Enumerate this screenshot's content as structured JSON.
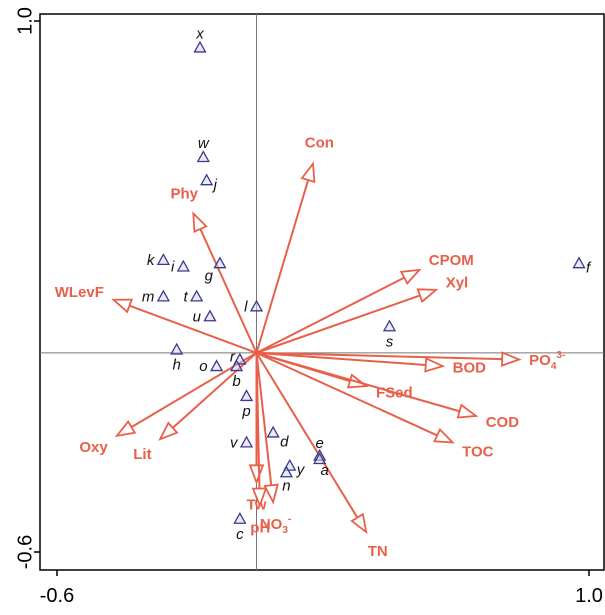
{
  "chart_data": {
    "type": "scatter",
    "title": "",
    "xlabel": "",
    "ylabel": "",
    "xlim": [
      -0.6,
      1.0
    ],
    "ylim": [
      -0.6,
      1.0
    ],
    "x_tick_labels": [
      "-0.6",
      "1.0"
    ],
    "y_tick_labels": [
      "-0.6",
      "1.0"
    ],
    "grid": false,
    "colors": {
      "vector": "#e8604a",
      "site": "#3a3a8c"
    },
    "sites": [
      {
        "label": "x",
        "x": -0.17,
        "y": 0.92
      },
      {
        "label": "w",
        "x": -0.16,
        "y": 0.59
      },
      {
        "label": "j",
        "x": -0.15,
        "y": 0.52
      },
      {
        "label": "g",
        "x": -0.11,
        "y": 0.27
      },
      {
        "label": "k",
        "x": -0.28,
        "y": 0.28
      },
      {
        "label": "i",
        "x": -0.22,
        "y": 0.26
      },
      {
        "label": "m",
        "x": -0.28,
        "y": 0.17
      },
      {
        "label": "t",
        "x": -0.18,
        "y": 0.17
      },
      {
        "label": "u",
        "x": -0.14,
        "y": 0.11
      },
      {
        "label": "l",
        "x": 0.0,
        "y": 0.14
      },
      {
        "label": "s",
        "x": 0.4,
        "y": 0.08
      },
      {
        "label": "f",
        "x": 0.97,
        "y": 0.27
      },
      {
        "label": "h",
        "x": -0.24,
        "y": 0.01
      },
      {
        "label": "o",
        "x": -0.12,
        "y": -0.04
      },
      {
        "label": "r",
        "x": -0.05,
        "y": -0.02
      },
      {
        "label": "b",
        "x": -0.06,
        "y": -0.04
      },
      {
        "label": "p",
        "x": -0.03,
        "y": -0.13
      },
      {
        "label": "v",
        "x": -0.03,
        "y": -0.27
      },
      {
        "label": "d",
        "x": 0.05,
        "y": -0.24
      },
      {
        "label": "e",
        "x": 0.19,
        "y": -0.31
      },
      {
        "label": "a",
        "x": 0.19,
        "y": -0.32
      },
      {
        "label": "y",
        "x": 0.1,
        "y": -0.34
      },
      {
        "label": "n",
        "x": 0.09,
        "y": -0.36
      },
      {
        "label": "c",
        "x": -0.05,
        "y": -0.5
      }
    ],
    "vectors": [
      {
        "label": "Con",
        "x": 0.17,
        "y": 0.57
      },
      {
        "label": "Phy",
        "x": -0.19,
        "y": 0.42
      },
      {
        "label": "CPOM",
        "x": 0.49,
        "y": 0.25
      },
      {
        "label": "Xyl",
        "x": 0.54,
        "y": 0.19
      },
      {
        "label": "WLevF",
        "x": -0.43,
        "y": 0.16
      },
      {
        "label": "PO",
        "sub": "4",
        "sup": "3-",
        "x": 0.79,
        "y": -0.02
      },
      {
        "label": "BOD",
        "x": 0.56,
        "y": -0.04
      },
      {
        "label": "FSed",
        "x": 0.33,
        "y": -0.1
      },
      {
        "label": "COD",
        "x": 0.66,
        "y": -0.19
      },
      {
        "label": "TOC",
        "x": 0.59,
        "y": -0.27
      },
      {
        "label": "Oxy",
        "x": -0.42,
        "y": -0.25
      },
      {
        "label": "Lit",
        "x": -0.29,
        "y": -0.26
      },
      {
        "label": "Tw",
        "x": 0.0,
        "y": -0.39
      },
      {
        "label": "pH",
        "x": 0.01,
        "y": -0.46
      },
      {
        "label": "NO",
        "sub": "3",
        "sup": "-",
        "x": 0.05,
        "y": -0.45
      },
      {
        "label": "TN",
        "x": 0.33,
        "y": -0.54
      }
    ]
  }
}
